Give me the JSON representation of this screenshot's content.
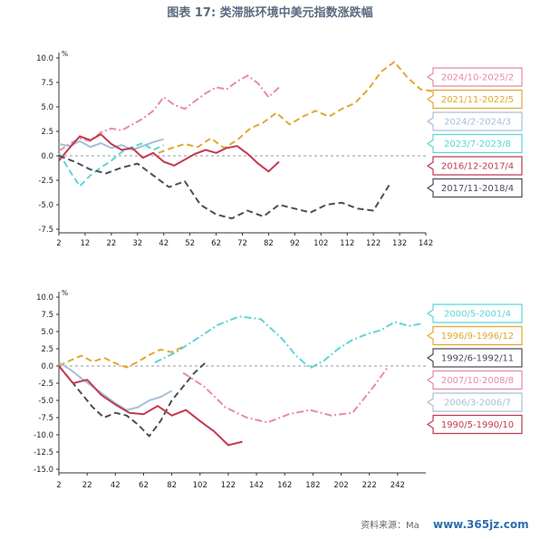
{
  "title": "图表 17: 类滞胀环境中美元指数涨跌幅",
  "source": "资料来源：Ma",
  "watermark": "www.365jz.com",
  "chart_data": [
    {
      "type": "line",
      "unit": "%",
      "ylim": [
        -7.5,
        10.0
      ],
      "yticks": [
        "10.0",
        "7.5",
        "5.0",
        "2.5",
        "0.0",
        "-2.5",
        "-5.0",
        "-7.5"
      ],
      "xlim": [
        2,
        142
      ],
      "xticks": [
        "2",
        "12",
        "22",
        "32",
        "42",
        "52",
        "62",
        "72",
        "82",
        "92",
        "102",
        "112",
        "122",
        "132",
        "142"
      ],
      "zero_line": "dashed",
      "series": [
        {
          "name": "2024/10-2025/2",
          "color": "#e88aa8",
          "style": "dashdot",
          "x": [
            2,
            6,
            10,
            14,
            18,
            22,
            26,
            30,
            34,
            38,
            42,
            46,
            50,
            54,
            58,
            62,
            66,
            70,
            74,
            78,
            82,
            86
          ],
          "y": [
            0.5,
            1.2,
            1.8,
            1.5,
            2.4,
            2.8,
            2.6,
            3.2,
            3.8,
            4.6,
            6.0,
            5.2,
            4.8,
            5.6,
            6.4,
            7.0,
            6.8,
            7.6,
            8.2,
            7.4,
            6.0,
            7.0
          ]
        },
        {
          "name": "2021/11-2022/5",
          "color": "#e1a830",
          "style": "dashed",
          "x": [
            40,
            45,
            50,
            55,
            60,
            65,
            70,
            75,
            80,
            85,
            90,
            95,
            100,
            105,
            110,
            115,
            120,
            125,
            130,
            135,
            140,
            145
          ],
          "y": [
            0.3,
            0.8,
            1.2,
            0.9,
            1.8,
            0.8,
            1.6,
            2.8,
            3.4,
            4.4,
            3.2,
            4.0,
            4.6,
            4.0,
            4.8,
            5.4,
            6.8,
            8.6,
            9.6,
            8.0,
            6.8,
            6.6
          ]
        },
        {
          "name": "2024/2-2024/3",
          "color": "#a6c0d8",
          "style": "solid",
          "x": [
            2,
            6,
            10,
            14,
            18,
            22,
            26,
            30,
            34,
            38,
            42
          ],
          "y": [
            1.2,
            1.0,
            1.5,
            0.9,
            1.3,
            0.8,
            1.1,
            0.6,
            1.0,
            1.4,
            1.7
          ]
        },
        {
          "name": "2023/7-2023/8",
          "color": "#5ed5d8",
          "style": "dashed",
          "x": [
            2,
            6,
            10,
            14,
            18,
            22,
            26,
            30,
            34,
            38,
            42
          ],
          "y": [
            0.3,
            -1.5,
            -3.1,
            -2.0,
            -1.2,
            -0.5,
            0.4,
            0.9,
            1.3,
            0.6,
            1.1
          ]
        },
        {
          "name": "2016/12-2017/4",
          "color": "#c23a50",
          "style": "solid",
          "x": [
            2,
            6,
            10,
            14,
            18,
            22,
            26,
            30,
            34,
            38,
            42,
            46,
            50,
            54,
            58,
            62,
            66,
            70,
            74,
            78,
            82,
            86
          ],
          "y": [
            -0.5,
            0.8,
            2.0,
            1.6,
            2.2,
            1.2,
            0.6,
            0.8,
            -0.2,
            0.3,
            -0.6,
            -1.0,
            -0.4,
            0.2,
            0.6,
            0.3,
            0.8,
            1.0,
            0.2,
            -0.8,
            -1.6,
            -0.6
          ]
        },
        {
          "name": "2017/11-2018/4",
          "color": "#4a4f58",
          "style": "dashed",
          "x": [
            2,
            8,
            14,
            20,
            26,
            32,
            38,
            44,
            50,
            56,
            62,
            68,
            74,
            80,
            86,
            92,
            98,
            104,
            110,
            116,
            122,
            128
          ],
          "y": [
            0.0,
            -0.6,
            -1.4,
            -1.8,
            -1.2,
            -0.8,
            -2.0,
            -3.2,
            -2.6,
            -5.0,
            -6.0,
            -6.4,
            -5.6,
            -6.2,
            -5.0,
            -5.4,
            -5.8,
            -5.0,
            -4.8,
            -5.4,
            -5.6,
            -3.0
          ]
        }
      ]
    },
    {
      "type": "line",
      "unit": "%",
      "ylim": [
        -15.0,
        10.0
      ],
      "yticks": [
        "10.0",
        "7.5",
        "5.0",
        "2.5",
        "0.0",
        "-2.5",
        "-5.0",
        "-7.5",
        "-10.0",
        "-12.5",
        "-15.0"
      ],
      "xlim": [
        2,
        262
      ],
      "xticks": [
        "2",
        "22",
        "42",
        "62",
        "82",
        "102",
        "122",
        "142",
        "162",
        "182",
        "202",
        "222",
        "242"
      ],
      "zero_line": "dashed",
      "series": [
        {
          "name": "2000/5-2001/4",
          "color": "#5ed5d8",
          "style": "dashdot",
          "x": [
            70,
            85,
            100,
            115,
            130,
            145,
            160,
            170,
            180,
            190,
            200,
            210,
            220,
            230,
            240,
            250,
            260
          ],
          "y": [
            0.5,
            2.0,
            4.0,
            6.0,
            7.2,
            6.8,
            4.0,
            1.5,
            -0.3,
            0.8,
            2.5,
            3.8,
            4.6,
            5.2,
            6.4,
            5.8,
            6.2
          ]
        },
        {
          "name": "1996/9-1996/12",
          "color": "#e1a830",
          "style": "dashed",
          "x": [
            2,
            10,
            18,
            26,
            34,
            42,
            50,
            58,
            66,
            74,
            82,
            90
          ],
          "y": [
            0.0,
            0.8,
            1.5,
            0.6,
            1.2,
            0.4,
            -0.2,
            0.6,
            1.6,
            2.4,
            2.0,
            2.8
          ]
        },
        {
          "name": "1992/6-1992/11",
          "color": "#4a4f58",
          "style": "dashed",
          "x": [
            2,
            10,
            18,
            26,
            34,
            42,
            50,
            58,
            66,
            74,
            82,
            90,
            98,
            106
          ],
          "y": [
            0.0,
            -2.0,
            -4.0,
            -6.0,
            -7.5,
            -6.8,
            -7.2,
            -8.5,
            -10.2,
            -8.0,
            -5.0,
            -3.0,
            -1.0,
            0.5
          ]
        },
        {
          "name": "2007/10-2008/8",
          "color": "#e88aa8",
          "style": "dashdot",
          "x": [
            90,
            105,
            120,
            135,
            150,
            165,
            180,
            195,
            210,
            225,
            235
          ],
          "y": [
            -1.0,
            -3.0,
            -6.0,
            -7.5,
            -8.2,
            -7.0,
            -6.4,
            -7.2,
            -6.8,
            -3.0,
            -0.2
          ]
        },
        {
          "name": "2006/3-2006/7",
          "color": "#a6c0d8",
          "style": "solid",
          "x": [
            2,
            10,
            18,
            26,
            34,
            42,
            50,
            58,
            66,
            74,
            82
          ],
          "y": [
            0.5,
            -0.5,
            -1.8,
            -3.0,
            -4.2,
            -5.4,
            -6.4,
            -6.0,
            -5.0,
            -4.5,
            -3.6
          ]
        },
        {
          "name": "1990/5-1990/10",
          "color": "#c23a50",
          "style": "solid",
          "x": [
            2,
            12,
            22,
            32,
            42,
            52,
            62,
            72,
            82,
            92,
            102,
            112,
            122,
            132
          ],
          "y": [
            0.0,
            -2.5,
            -2.0,
            -4.2,
            -5.6,
            -6.8,
            -7.0,
            -5.8,
            -7.2,
            -6.4,
            -8.0,
            -9.5,
            -11.5,
            -11.0
          ]
        }
      ]
    }
  ]
}
